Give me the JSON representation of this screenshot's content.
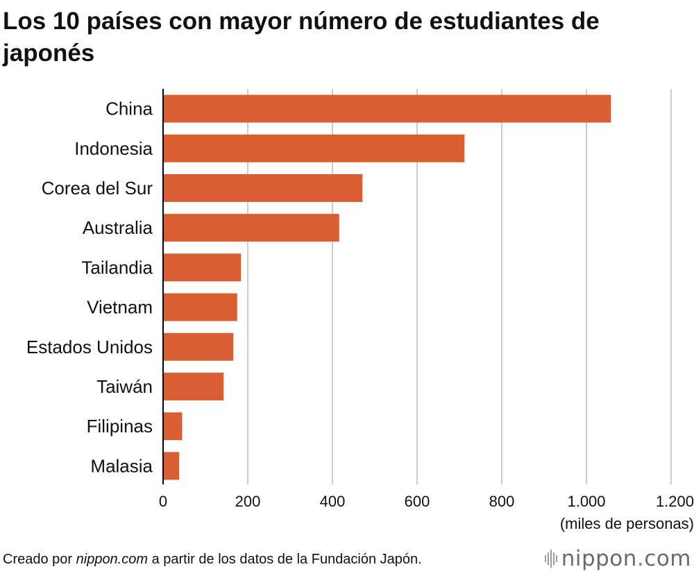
{
  "title": "Los 10 países con mayor número de estudiantes de japonés",
  "footer": {
    "prefix": "Creado por ",
    "source_italic": "nippon.com",
    "suffix": " a partir de los datos de la Fundación Japón."
  },
  "brand": {
    "name": "nippon",
    "dot": ".",
    "tld": "com"
  },
  "colors": {
    "bar": "#d95f33",
    "grid": "#cccccc",
    "axis": "#000000"
  },
  "chart_data": {
    "type": "bar",
    "orientation": "horizontal",
    "categories": [
      "China",
      "Indonesia",
      "Corea del Sur",
      "Australia",
      "Tailandia",
      "Vietnam",
      "Estados Unidos",
      "Taiwán",
      "Filipinas",
      "Malasia"
    ],
    "values": [
      1058,
      712,
      471,
      416,
      184,
      175,
      166,
      143,
      45,
      38
    ],
    "xlim": [
      0,
      1200
    ],
    "xticks": [
      0,
      200,
      400,
      600,
      800,
      1000,
      1200
    ],
    "xtick_labels": [
      "0",
      "200",
      "400",
      "600",
      "800",
      "1.000",
      "1.200"
    ],
    "xlabel": "(miles de personas)",
    "grid": true
  }
}
